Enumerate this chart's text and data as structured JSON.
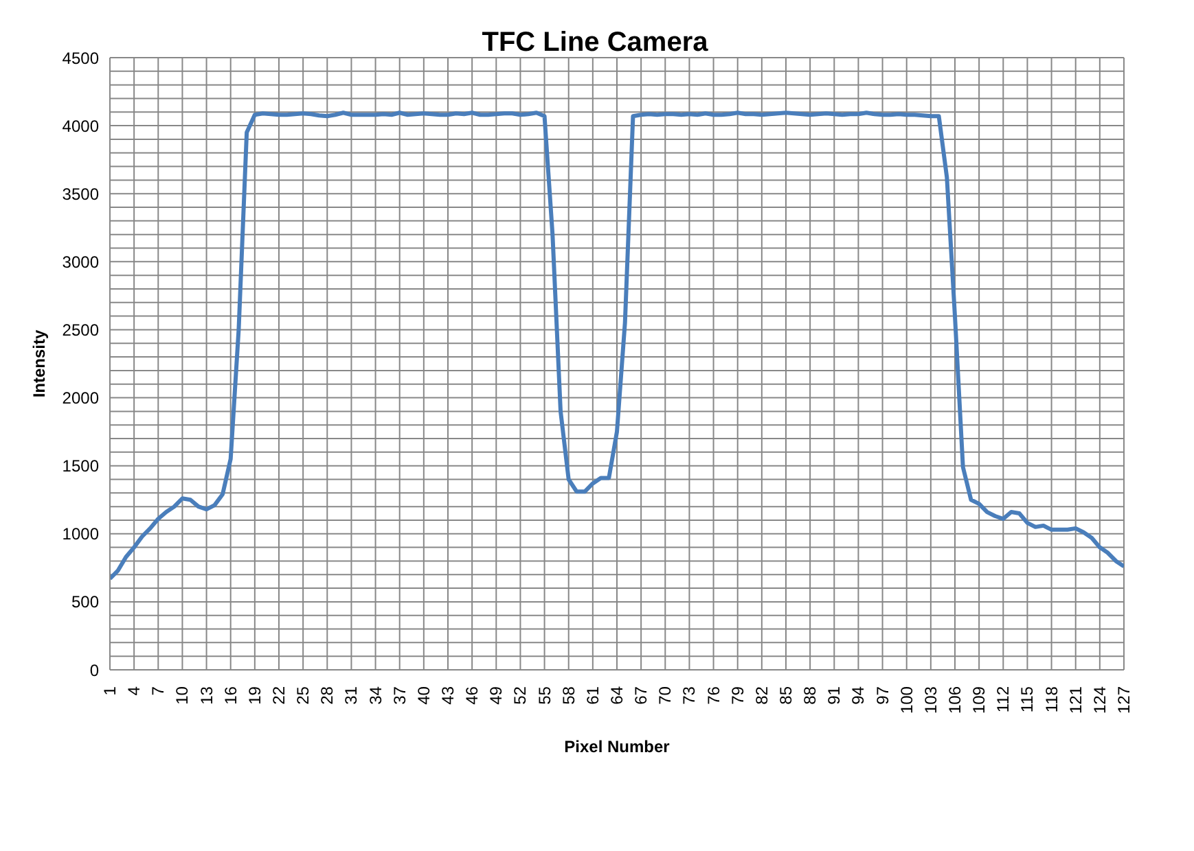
{
  "chart_data": {
    "type": "line",
    "title": "TFC Line Camera",
    "xlabel": "Pixel Number",
    "ylabel": "Intensity",
    "categories": [
      "1",
      null,
      null,
      "4",
      null,
      null,
      "7",
      null,
      null,
      "10",
      null,
      null,
      "13",
      null,
      null,
      "16",
      null,
      null,
      "19",
      null,
      null,
      "22",
      null,
      null,
      "25",
      null,
      null,
      "28",
      null,
      null,
      "31",
      null,
      null,
      "34",
      null,
      null,
      "37",
      null,
      null,
      "40",
      null,
      null,
      "43",
      null,
      null,
      "46",
      null,
      null,
      "49",
      null,
      null,
      "52",
      null,
      null,
      "55",
      null,
      null,
      "58",
      null,
      null,
      "61",
      null,
      null,
      "64",
      null,
      null,
      "67",
      null,
      null,
      "70",
      null,
      null,
      "73",
      null,
      null,
      "76",
      null,
      null,
      "79",
      null,
      null,
      "82",
      null,
      null,
      "85",
      null,
      null,
      "88",
      null,
      null,
      "91",
      null,
      null,
      "94",
      null,
      null,
      "97",
      null,
      null,
      "100",
      null,
      null,
      "103",
      null,
      null,
      "106",
      null,
      null,
      "109",
      null,
      null,
      "112",
      null,
      null,
      "115",
      null,
      null,
      "118",
      null,
      null,
      "121",
      null,
      null,
      "124",
      null,
      null,
      "127"
    ],
    "series": [
      {
        "color": "#4a7ebb",
        "values": [
          670,
          730,
          830,
          900,
          980,
          1040,
          1110,
          1160,
          1200,
          1260,
          1250,
          1200,
          1180,
          1210,
          1290,
          1550,
          2500,
          3950,
          4080,
          4090,
          4085,
          4080,
          4080,
          4085,
          4090,
          4085,
          4075,
          4070,
          4080,
          4095,
          4080,
          4080,
          4080,
          4080,
          4085,
          4080,
          4095,
          4080,
          4085,
          4090,
          4085,
          4080,
          4080,
          4090,
          4085,
          4095,
          4080,
          4080,
          4085,
          4090,
          4090,
          4080,
          4085,
          4095,
          4070,
          3200,
          1900,
          1400,
          1310,
          1310,
          1370,
          1410,
          1410,
          1750,
          2550,
          4070,
          4080,
          4085,
          4080,
          4085,
          4085,
          4080,
          4085,
          4080,
          4090,
          4080,
          4080,
          4085,
          4095,
          4085,
          4085,
          4080,
          4085,
          4090,
          4095,
          4090,
          4085,
          4080,
          4085,
          4090,
          4085,
          4080,
          4085,
          4085,
          4095,
          4085,
          4080,
          4080,
          4085,
          4080,
          4080,
          4075,
          4070,
          4070,
          3620,
          2600,
          1490,
          1250,
          1220,
          1160,
          1130,
          1110,
          1160,
          1150,
          1080,
          1050,
          1060,
          1030,
          1030,
          1030,
          1040,
          1010,
          970,
          900,
          860,
          800,
          760
        ]
      }
    ],
    "ylim": [
      0,
      4500
    ],
    "yticks": [
      0,
      {
        "value": 100,
        "label": null
      },
      {
        "value": 200,
        "label": null
      },
      {
        "value": 300,
        "label": null
      },
      {
        "value": 400,
        "label": null
      },
      500,
      {
        "value": 600,
        "label": null
      },
      {
        "value": 700,
        "label": null
      },
      {
        "value": 800,
        "label": null
      },
      {
        "value": 900,
        "label": null
      },
      1000,
      {
        "value": 1100,
        "label": null
      },
      {
        "value": 1200,
        "label": null
      },
      {
        "value": 1300,
        "label": null
      },
      {
        "value": 1400,
        "label": null
      },
      1500,
      {
        "value": 1600,
        "label": null
      },
      {
        "value": 1700,
        "label": null
      },
      {
        "value": 1800,
        "label": null
      },
      {
        "value": 1900,
        "label": null
      },
      2000,
      {
        "value": 2100,
        "label": null
      },
      {
        "value": 2200,
        "label": null
      },
      {
        "value": 2300,
        "label": null
      },
      {
        "value": 2400,
        "label": null
      },
      2500,
      {
        "value": 2600,
        "label": null
      },
      {
        "value": 2700,
        "label": null
      },
      {
        "value": 2800,
        "label": null
      },
      {
        "value": 2900,
        "label": null
      },
      3000,
      {
        "value": 3100,
        "label": null
      },
      {
        "value": 3200,
        "label": null
      },
      {
        "value": 3300,
        "label": null
      },
      {
        "value": 3400,
        "label": null
      },
      3500,
      {
        "value": 3600,
        "label": null
      },
      {
        "value": 3700,
        "label": null
      },
      {
        "value": 3800,
        "label": null
      },
      {
        "value": 3900,
        "label": null
      },
      4000,
      {
        "value": 4100,
        "label": null
      },
      {
        "value": 4200,
        "label": null
      },
      {
        "value": 4300,
        "label": null
      },
      {
        "value": 4400,
        "label": null
      },
      4500
    ],
    "grid": true,
    "legend": false,
    "marker": "none",
    "line_style": "solid"
  }
}
